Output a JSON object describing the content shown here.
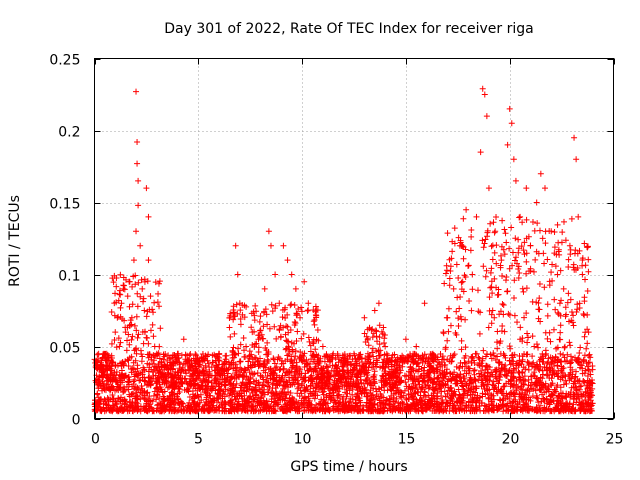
{
  "chart_data": {
    "type": "scatter",
    "title": "Day 301 of 2022, Rate Of TEC Index for receiver riga",
    "xlabel": "GPS time / hours",
    "ylabel": "ROTI / TECUs",
    "xlim": [
      0,
      25
    ],
    "ylim": [
      0,
      0.25
    ],
    "xticks": [
      0,
      5,
      10,
      15,
      20,
      25
    ],
    "yticks": [
      0,
      0.05,
      0.1,
      0.15,
      0.2,
      0.25
    ],
    "xtick_labels": [
      "0",
      "5",
      "10",
      "15",
      "20",
      "25"
    ],
    "ytick_labels": [
      "0",
      "0.05",
      "0.1",
      "0.15",
      "0.2",
      "0.25"
    ],
    "grid": true,
    "marker": "+",
    "color": "#ff0000",
    "x_range_of_data": [
      0,
      24
    ],
    "series": [
      {
        "values": [
          [
            0.1,
            0.03
          ],
          [
            0.2,
            0.045
          ],
          [
            0.4,
            0.03
          ],
          [
            0.6,
            0.035
          ],
          [
            0.8,
            0.04
          ],
          [
            1.0,
            0.06
          ],
          [
            1.1,
            0.07
          ],
          [
            1.2,
            0.05
          ],
          [
            1.3,
            0.08
          ],
          [
            1.4,
            0.09
          ],
          [
            1.5,
            0.06
          ],
          [
            1.6,
            0.085
          ],
          [
            1.7,
            0.095
          ],
          [
            1.8,
            0.07
          ],
          [
            1.9,
            0.11
          ],
          [
            2.0,
            0.13
          ],
          [
            2.0,
            0.227
          ],
          [
            2.05,
            0.192
          ],
          [
            2.05,
            0.177
          ],
          [
            2.1,
            0.165
          ],
          [
            2.1,
            0.148
          ],
          [
            2.2,
            0.12
          ],
          [
            2.3,
            0.09
          ],
          [
            2.4,
            0.075
          ],
          [
            2.5,
            0.16
          ],
          [
            2.6,
            0.14
          ],
          [
            2.6,
            0.11
          ],
          [
            2.7,
            0.085
          ],
          [
            2.8,
            0.065
          ],
          [
            2.9,
            0.05
          ],
          [
            3.0,
            0.045
          ],
          [
            3.5,
            0.04
          ],
          [
            4.0,
            0.045
          ],
          [
            4.3,
            0.055
          ],
          [
            4.6,
            0.035
          ],
          [
            5.0,
            0.04
          ],
          [
            5.5,
            0.038
          ],
          [
            6.0,
            0.045
          ],
          [
            6.5,
            0.07
          ],
          [
            6.8,
            0.12
          ],
          [
            6.9,
            0.1
          ],
          [
            7.0,
            0.08
          ],
          [
            7.3,
            0.05
          ],
          [
            7.6,
            0.06
          ],
          [
            7.9,
            0.055
          ],
          [
            8.2,
            0.09
          ],
          [
            8.4,
            0.13
          ],
          [
            8.5,
            0.12
          ],
          [
            8.7,
            0.1
          ],
          [
            8.9,
            0.08
          ],
          [
            9.1,
            0.12
          ],
          [
            9.3,
            0.11
          ],
          [
            9.5,
            0.1
          ],
          [
            9.7,
            0.09
          ],
          [
            9.9,
            0.07
          ],
          [
            10.1,
            0.095
          ],
          [
            10.3,
            0.08
          ],
          [
            10.6,
            0.065
          ],
          [
            11.0,
            0.05
          ],
          [
            11.5,
            0.045
          ],
          [
            12.0,
            0.04
          ],
          [
            12.5,
            0.045
          ],
          [
            13.0,
            0.07
          ],
          [
            13.5,
            0.075
          ],
          [
            13.7,
            0.08
          ],
          [
            14.0,
            0.05
          ],
          [
            14.5,
            0.04
          ],
          [
            15.0,
            0.055
          ],
          [
            15.5,
            0.05
          ],
          [
            15.9,
            0.08
          ],
          [
            16.3,
            0.045
          ],
          [
            16.8,
            0.06
          ],
          [
            17.0,
            0.07
          ],
          [
            17.3,
            0.09
          ],
          [
            17.6,
            0.12
          ],
          [
            17.9,
            0.145
          ],
          [
            18.2,
            0.1
          ],
          [
            18.4,
            0.14
          ],
          [
            18.6,
            0.185
          ],
          [
            18.7,
            0.229
          ],
          [
            18.8,
            0.225
          ],
          [
            18.9,
            0.21
          ],
          [
            19.0,
            0.16
          ],
          [
            19.3,
            0.13
          ],
          [
            19.6,
            0.11
          ],
          [
            19.9,
            0.19
          ],
          [
            20.0,
            0.215
          ],
          [
            20.1,
            0.205
          ],
          [
            20.2,
            0.18
          ],
          [
            20.3,
            0.165
          ],
          [
            20.5,
            0.14
          ],
          [
            20.8,
            0.16
          ],
          [
            21.0,
            0.12
          ],
          [
            21.3,
            0.15
          ],
          [
            21.5,
            0.17
          ],
          [
            21.7,
            0.16
          ],
          [
            22.0,
            0.13
          ],
          [
            22.3,
            0.1
          ],
          [
            22.6,
            0.09
          ],
          [
            22.9,
            0.12
          ],
          [
            23.1,
            0.195
          ],
          [
            23.2,
            0.18
          ],
          [
            23.3,
            0.14
          ],
          [
            23.5,
            0.1
          ],
          [
            23.8,
            0.06
          ]
        ]
      }
    ]
  }
}
